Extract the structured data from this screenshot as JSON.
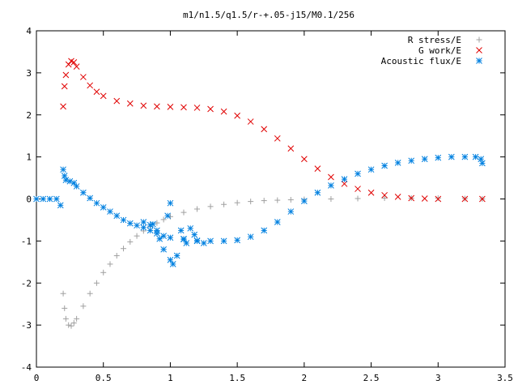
{
  "chart_data": {
    "type": "scatter",
    "title": "m1/n1.5/q1.5/r-+.05-j15/M0.1/256",
    "xlabel": "",
    "ylabel": "",
    "xlim": [
      0,
      3.5
    ],
    "ylim": [
      -4,
      4
    ],
    "x_ticks": [
      "0",
      "0.5",
      "1",
      "1.5",
      "2",
      "2.5",
      "3",
      "3.5"
    ],
    "y_ticks": [
      "-4",
      "-3",
      "-2",
      "-1",
      "0",
      "1",
      "2",
      "3",
      "4"
    ],
    "grid": false,
    "legend_position": "top-right",
    "series": [
      {
        "name": "R stress/E",
        "marker": "plus",
        "color": "#a0a0a0",
        "points": [
          [
            0.2,
            -2.25
          ],
          [
            0.21,
            -2.6
          ],
          [
            0.22,
            -2.85
          ],
          [
            0.24,
            -3.0
          ],
          [
            0.26,
            -3.02
          ],
          [
            0.28,
            -2.95
          ],
          [
            0.3,
            -2.85
          ],
          [
            0.35,
            -2.55
          ],
          [
            0.4,
            -2.25
          ],
          [
            0.45,
            -2.0
          ],
          [
            0.5,
            -1.75
          ],
          [
            0.55,
            -1.55
          ],
          [
            0.6,
            -1.35
          ],
          [
            0.65,
            -1.18
          ],
          [
            0.7,
            -1.02
          ],
          [
            0.75,
            -0.88
          ],
          [
            0.8,
            -0.76
          ],
          [
            0.85,
            -0.66
          ],
          [
            0.9,
            -0.57
          ],
          [
            0.95,
            -0.49
          ],
          [
            1.0,
            -0.42
          ],
          [
            1.1,
            -0.32
          ],
          [
            1.2,
            -0.24
          ],
          [
            1.3,
            -0.18
          ],
          [
            1.4,
            -0.13
          ],
          [
            1.5,
            -0.09
          ],
          [
            1.6,
            -0.06
          ],
          [
            1.7,
            -0.04
          ],
          [
            1.8,
            -0.03
          ],
          [
            1.9,
            -0.02
          ],
          [
            2.0,
            -0.01
          ],
          [
            2.2,
            0.0
          ],
          [
            2.4,
            0.01
          ],
          [
            2.6,
            0.02
          ],
          [
            2.8,
            0.02
          ],
          [
            3.0,
            0.02
          ],
          [
            3.2,
            0.01
          ],
          [
            3.33,
            0.0
          ]
        ]
      },
      {
        "name": "G work/E",
        "marker": "cross",
        "color": "#e00000",
        "points": [
          [
            0.2,
            2.2
          ],
          [
            0.21,
            2.68
          ],
          [
            0.22,
            2.95
          ],
          [
            0.24,
            3.2
          ],
          [
            0.26,
            3.28
          ],
          [
            0.28,
            3.25
          ],
          [
            0.3,
            3.15
          ],
          [
            0.35,
            2.9
          ],
          [
            0.4,
            2.7
          ],
          [
            0.45,
            2.55
          ],
          [
            0.5,
            2.45
          ],
          [
            0.6,
            2.33
          ],
          [
            0.7,
            2.27
          ],
          [
            0.8,
            2.22
          ],
          [
            0.9,
            2.2
          ],
          [
            1.0,
            2.19
          ],
          [
            1.1,
            2.18
          ],
          [
            1.2,
            2.17
          ],
          [
            1.3,
            2.14
          ],
          [
            1.4,
            2.08
          ],
          [
            1.5,
            1.98
          ],
          [
            1.6,
            1.84
          ],
          [
            1.7,
            1.66
          ],
          [
            1.8,
            1.44
          ],
          [
            1.9,
            1.2
          ],
          [
            2.0,
            0.95
          ],
          [
            2.1,
            0.72
          ],
          [
            2.2,
            0.52
          ],
          [
            2.3,
            0.36
          ],
          [
            2.4,
            0.24
          ],
          [
            2.5,
            0.15
          ],
          [
            2.6,
            0.09
          ],
          [
            2.7,
            0.05
          ],
          [
            2.8,
            0.02
          ],
          [
            2.9,
            0.01
          ],
          [
            3.0,
            0.0
          ],
          [
            3.2,
            0.0
          ],
          [
            3.33,
            0.0
          ]
        ]
      },
      {
        "name": "Acoustic flux/E",
        "marker": "star",
        "color": "#0080e0",
        "points": [
          [
            0.0,
            0.0
          ],
          [
            0.05,
            0.0
          ],
          [
            0.1,
            0.0
          ],
          [
            0.15,
            0.0
          ],
          [
            0.18,
            -0.15
          ],
          [
            0.2,
            0.7
          ],
          [
            0.21,
            0.55
          ],
          [
            0.22,
            0.45
          ],
          [
            0.25,
            0.42
          ],
          [
            0.28,
            0.38
          ],
          [
            0.3,
            0.3
          ],
          [
            0.35,
            0.15
          ],
          [
            0.4,
            0.02
          ],
          [
            0.45,
            -0.1
          ],
          [
            0.5,
            -0.2
          ],
          [
            0.55,
            -0.3
          ],
          [
            0.6,
            -0.4
          ],
          [
            0.65,
            -0.5
          ],
          [
            0.7,
            -0.58
          ],
          [
            0.75,
            -0.63
          ],
          [
            0.8,
            -0.68
          ],
          [
            0.85,
            -0.75
          ],
          [
            0.9,
            -0.82
          ],
          [
            0.95,
            -0.88
          ],
          [
            1.0,
            -0.92
          ],
          [
            1.1,
            -0.96
          ],
          [
            1.2,
            -0.99
          ],
          [
            1.3,
            -1.0
          ],
          [
            1.4,
            -1.0
          ],
          [
            1.5,
            -0.98
          ],
          [
            1.6,
            -0.9
          ],
          [
            1.7,
            -0.75
          ],
          [
            1.8,
            -0.55
          ],
          [
            1.9,
            -0.3
          ],
          [
            2.0,
            -0.05
          ],
          [
            2.1,
            0.15
          ],
          [
            2.2,
            0.32
          ],
          [
            2.3,
            0.47
          ],
          [
            2.4,
            0.6
          ],
          [
            2.5,
            0.7
          ],
          [
            2.6,
            0.79
          ],
          [
            2.7,
            0.86
          ],
          [
            2.8,
            0.91
          ],
          [
            2.9,
            0.95
          ],
          [
            3.0,
            0.98
          ],
          [
            3.1,
            1.0
          ],
          [
            3.2,
            1.0
          ],
          [
            3.28,
            1.0
          ],
          [
            3.32,
            0.95
          ],
          [
            3.33,
            0.85
          ],
          [
            0.8,
            -0.55
          ],
          [
            0.85,
            -0.62
          ],
          [
            0.87,
            -0.6
          ],
          [
            0.9,
            -0.75
          ],
          [
            0.92,
            -0.95
          ],
          [
            0.95,
            -1.2
          ],
          [
            0.98,
            -0.4
          ],
          [
            1.0,
            -0.1
          ],
          [
            1.0,
            -1.45
          ],
          [
            1.02,
            -1.55
          ],
          [
            1.05,
            -1.35
          ],
          [
            1.08,
            -0.75
          ],
          [
            1.1,
            -0.95
          ],
          [
            1.12,
            -1.05
          ],
          [
            1.15,
            -0.7
          ],
          [
            1.18,
            -0.85
          ],
          [
            1.2,
            -1.0
          ],
          [
            1.25,
            -1.05
          ]
        ]
      }
    ]
  }
}
